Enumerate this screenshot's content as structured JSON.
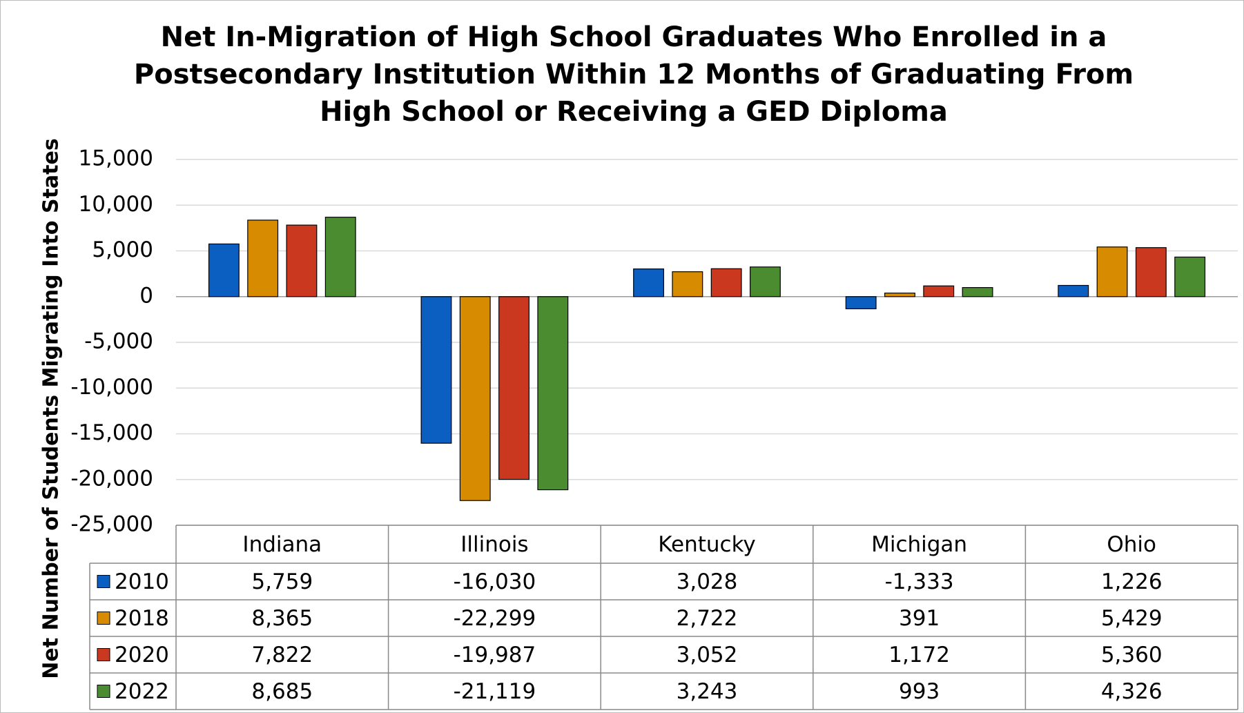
{
  "chart_data": {
    "type": "bar",
    "title": [
      "Net In-Migration of High School Graduates Who Enrolled in a",
      "Postsecondary Institution Within 12 Months of Graduating From",
      "High School or Receiving a GED Diploma"
    ],
    "y_label": "Net Number of Students Migrating Into States",
    "categories": [
      "Indiana",
      "Illinois",
      "Kentucky",
      "Michigan",
      "Ohio"
    ],
    "series": [
      {
        "name": "2010",
        "color": "#0b5fc1",
        "values": [
          5759,
          -16030,
          3028,
          -1333,
          1226
        ],
        "value_labels": [
          "5,759",
          "-16,030",
          "3,028",
          "-1,333",
          "1,226"
        ]
      },
      {
        "name": "2018",
        "color": "#d68b00",
        "values": [
          8365,
          -22299,
          2722,
          391,
          5429
        ],
        "value_labels": [
          "8,365",
          "-22,299",
          "2,722",
          "391",
          "5,429"
        ]
      },
      {
        "name": "2020",
        "color": "#c9381f",
        "values": [
          7822,
          -19987,
          3052,
          1172,
          5360
        ],
        "value_labels": [
          "7,822",
          "-19,987",
          "3,052",
          "1,172",
          "5,360"
        ]
      },
      {
        "name": "2022",
        "color": "#4a8c2f",
        "values": [
          8685,
          -21119,
          3243,
          993,
          4326
        ],
        "value_labels": [
          "8,685",
          "-21,119",
          "3,243",
          "993",
          "4,326"
        ]
      }
    ],
    "ylim": [
      -25000,
      15000
    ],
    "yticks": [
      {
        "value": -25000,
        "label": "-25,000"
      },
      {
        "value": -20000,
        "label": "-20,000"
      },
      {
        "value": -15000,
        "label": "-15,000"
      },
      {
        "value": -10000,
        "label": "-10,000"
      },
      {
        "value": -5000,
        "label": "-5,000"
      },
      0,
      {
        "value": 5000,
        "label": "5,000"
      },
      {
        "value": 10000,
        "label": "10,000"
      },
      {
        "value": 15000,
        "label": "15,000"
      }
    ],
    "grid": true
  }
}
